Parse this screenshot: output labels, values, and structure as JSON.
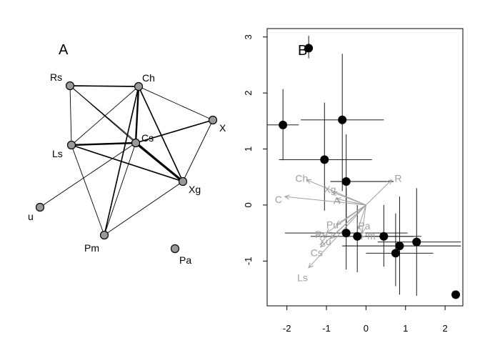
{
  "colors": {
    "node_fill": "#999999",
    "node_stroke": "#000000",
    "vector": "#a0a0a0",
    "point": "#000000"
  },
  "chart_data": [
    {
      "type": "network",
      "panel_label": "A",
      "nodes": [
        {
          "id": "Rs",
          "label": "Rs"
        },
        {
          "id": "Ch",
          "label": "Ch"
        },
        {
          "id": "X",
          "label": "X"
        },
        {
          "id": "Cs",
          "label": "Cs"
        },
        {
          "id": "Ls",
          "label": "Ls"
        },
        {
          "id": "Xg",
          "label": "Xg"
        },
        {
          "id": "u",
          "label": "u"
        },
        {
          "id": "Pm",
          "label": "Pm"
        },
        {
          "id": "Pa",
          "label": "Pa"
        }
      ],
      "edges": [
        {
          "from": "Rs",
          "to": "Ch",
          "weight": 2
        },
        {
          "from": "Rs",
          "to": "Ls",
          "weight": 1
        },
        {
          "from": "Rs",
          "to": "Cs",
          "weight": 1
        },
        {
          "from": "Rs",
          "to": "Xg",
          "weight": 1
        },
        {
          "from": "Ch",
          "to": "X",
          "weight": 1
        },
        {
          "from": "Ch",
          "to": "Ls",
          "weight": 1
        },
        {
          "from": "Ch",
          "to": "Cs",
          "weight": 3
        },
        {
          "from": "Ch",
          "to": "Xg",
          "weight": 2
        },
        {
          "from": "Ch",
          "to": "Pm",
          "weight": 2
        },
        {
          "from": "X",
          "to": "Cs",
          "weight": 2
        },
        {
          "from": "X",
          "to": "Xg",
          "weight": 1
        },
        {
          "from": "Ls",
          "to": "Cs",
          "weight": 3
        },
        {
          "from": "Ls",
          "to": "Xg",
          "weight": 2
        },
        {
          "from": "Ls",
          "to": "Pm",
          "weight": 1
        },
        {
          "from": "Cs",
          "to": "Xg",
          "weight": 4
        },
        {
          "from": "Cs",
          "to": "Pm",
          "weight": 1
        },
        {
          "from": "Cs",
          "to": "u",
          "weight": 1
        },
        {
          "from": "Xg",
          "to": "Pm",
          "weight": 1
        }
      ]
    },
    {
      "type": "scatter",
      "panel_label": "B",
      "xlim": [
        -2.5,
        2.45
      ],
      "ylim": [
        -1.8,
        3.15
      ],
      "x_ticks": [
        -2,
        -1,
        0,
        1,
        2
      ],
      "y_ticks": [
        -1,
        0,
        1,
        2,
        3
      ],
      "points": [
        {
          "x": -1.45,
          "y": 2.8,
          "ex": [
            -1.45,
            -1.45
          ],
          "ey": [
            2.62,
            3.02
          ]
        },
        {
          "x": -2.1,
          "y": 1.43,
          "ex": [
            -2.5,
            -1.7
          ],
          "ey": [
            0.8,
            2.07
          ]
        },
        {
          "x": -0.6,
          "y": 1.52,
          "ex": [
            -1.65,
            0.45
          ],
          "ey": [
            0.25,
            2.7
          ]
        },
        {
          "x": -1.05,
          "y": 0.81,
          "ex": [
            -2.2,
            0.15
          ],
          "ey": [
            -0.1,
            1.83
          ]
        },
        {
          "x": -0.5,
          "y": 0.42,
          "ex": [
            -0.9,
            0.7
          ],
          "ey": [
            -0.5,
            1.26
          ]
        },
        {
          "x": -0.5,
          "y": -0.5,
          "ex": [
            -2.05,
            1.05
          ],
          "ey": [
            -1.15,
            0.3
          ]
        },
        {
          "x": -0.22,
          "y": -0.56,
          "ex": [
            -1.4,
            1.4
          ],
          "ey": [
            -1.2,
            0.0
          ]
        },
        {
          "x": 0.45,
          "y": -0.56,
          "ex": [
            -0.3,
            1.2
          ],
          "ey": [
            -1.1,
            0.0
          ]
        },
        {
          "x": 0.85,
          "y": -0.73,
          "ex": [
            -0.6,
            2.4
          ],
          "ey": [
            -1.6,
            0.15
          ]
        },
        {
          "x": 0.75,
          "y": -0.86,
          "ex": [
            0.0,
            1.7
          ],
          "ey": [
            -1.45,
            -0.15
          ]
        },
        {
          "x": 1.28,
          "y": -0.66,
          "ex": [
            0.3,
            2.4
          ],
          "ey": [
            -1.62,
            0.3
          ]
        },
        {
          "x": 2.27,
          "y": -1.6,
          "ex": [
            2.27,
            2.27
          ],
          "ey": [
            -1.6,
            -1.6
          ]
        }
      ],
      "vectors": [
        {
          "label": "R",
          "x": 0.65,
          "y": 0.45
        },
        {
          "label": "Ch",
          "x": -1.5,
          "y": 0.45
        },
        {
          "label": "Xg",
          "x": -0.85,
          "y": 0.23
        },
        {
          "label": "A",
          "x": -0.75,
          "y": 0.11
        },
        {
          "label": "C",
          "x": -2.05,
          "y": 0.15
        },
        {
          "label": "Pu",
          "x": -0.75,
          "y": -0.35
        },
        {
          "label": "Pa",
          "x": -0.2,
          "y": -0.42
        },
        {
          "label": "Re",
          "x": -1.0,
          "y": -0.5
        },
        {
          "label": "Pm",
          "x": -0.1,
          "y": -0.5
        },
        {
          "label": "Xu",
          "x": -0.9,
          "y": -0.6
        },
        {
          "label": "Cs",
          "x": -1.15,
          "y": -0.75
        },
        {
          "label": "Ls",
          "x": -1.45,
          "y": -1.12
        }
      ],
      "vector_origin": {
        "x": 0.0,
        "y": 0.0
      }
    }
  ]
}
